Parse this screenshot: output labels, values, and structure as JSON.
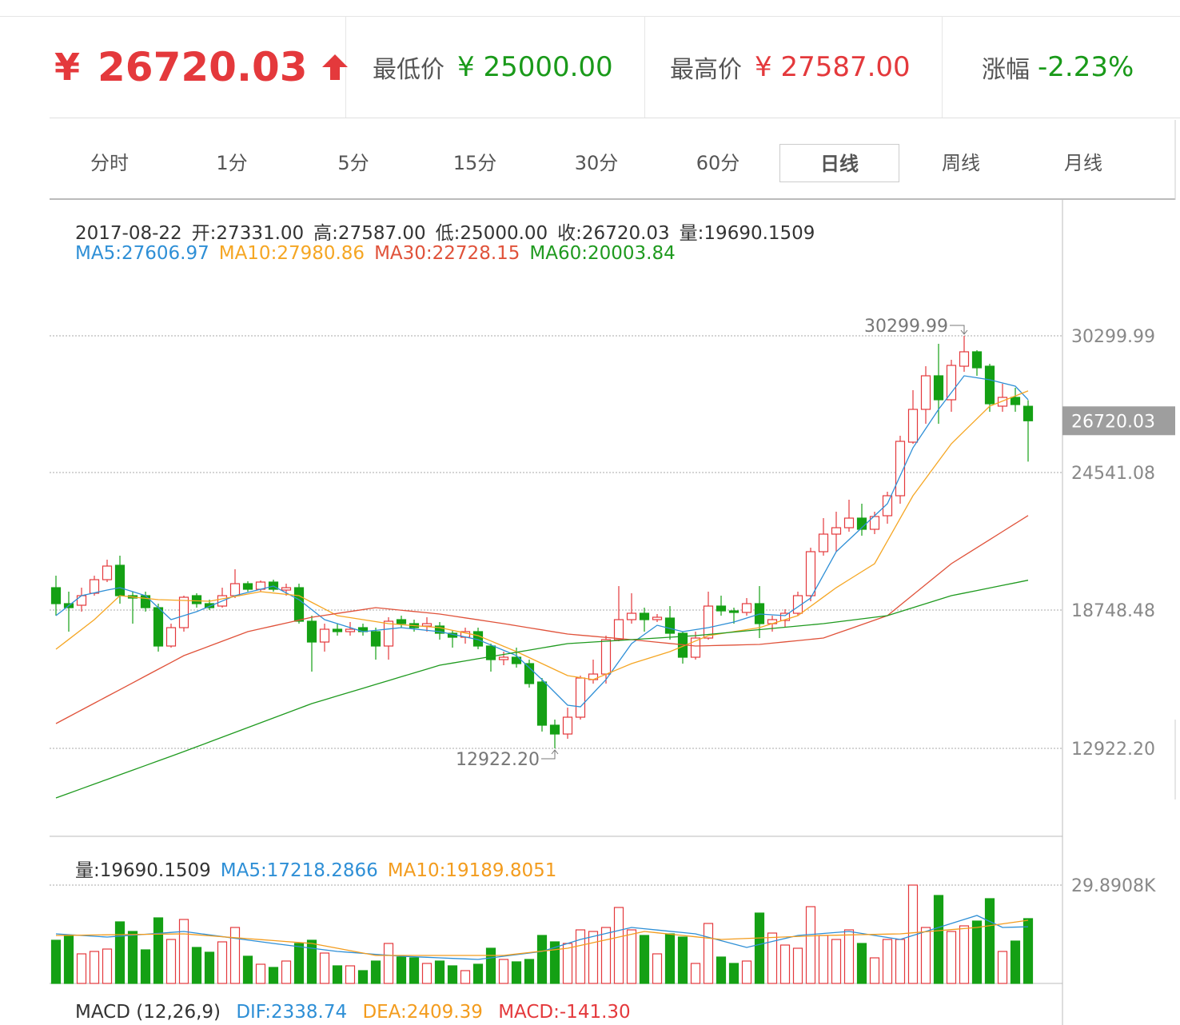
{
  "header": {
    "price": {
      "symbol": "¥",
      "value": "26720.03"
    },
    "low": {
      "label": "最低价",
      "value": "¥ 25000.00"
    },
    "high": {
      "label": "最高价",
      "value": "¥ 27587.00"
    },
    "change": {
      "label": "涨幅",
      "value": "-2.23%"
    }
  },
  "tabs": {
    "items": [
      "分时",
      "1分",
      "5分",
      "15分",
      "30分",
      "60分",
      "日线",
      "周线",
      "月线"
    ],
    "active": "日线"
  },
  "chart_data": {
    "type": "candlestick",
    "info": [
      "2017-08-22",
      "开:27331.00",
      "高:27587.00",
      "低:25000.00",
      "收:26720.03",
      "量:19690.1509"
    ],
    "up_color": "#e4393c",
    "down_color": "#14a014",
    "ylim": [
      9250,
      36025
    ],
    "yticks": [
      30299.99,
      24541.08,
      18748.48,
      {
        "value": 12922.2,
        "label": "12922.20"
      }
    ],
    "grid": true,
    "price_tag": {
      "value": 26720.03,
      "label": "26720.03"
    },
    "annotations": [
      "30299.99",
      "12922.20"
    ],
    "ohlc": [
      [
        19690,
        20195,
        18511,
        19017
      ],
      [
        19017,
        19522,
        17838,
        18848
      ],
      [
        18950,
        19690,
        18680,
        19353
      ],
      [
        19455,
        20195,
        19353,
        20027
      ],
      [
        20027,
        20869,
        19926,
        20600
      ],
      [
        20633,
        21038,
        19017,
        19353
      ],
      [
        19353,
        19522,
        18175,
        19252
      ],
      [
        19353,
        19522,
        18680,
        18848
      ],
      [
        18848,
        19017,
        16996,
        17232
      ],
      [
        17232,
        18175,
        17164,
        18006
      ],
      [
        18006,
        19353,
        17838,
        19286
      ],
      [
        19353,
        19455,
        18848,
        19017
      ],
      [
        19017,
        19185,
        18747,
        18848
      ],
      [
        18915,
        19690,
        18848,
        19353
      ],
      [
        19353,
        20465,
        19252,
        19859
      ],
      [
        19859,
        19960,
        19522,
        19623
      ],
      [
        19623,
        19993,
        19522,
        19926
      ],
      [
        19926,
        20027,
        19522,
        19623
      ],
      [
        19589,
        19859,
        19353,
        19690
      ],
      [
        19690,
        19859,
        18175,
        18276
      ],
      [
        18276,
        18511,
        16154,
        17400
      ],
      [
        17400,
        18175,
        16996,
        17939
      ],
      [
        17939,
        18175,
        17669,
        17838
      ],
      [
        17838,
        18242,
        17669,
        17939
      ],
      [
        18006,
        18175,
        17669,
        17838
      ],
      [
        17838,
        18006,
        16659,
        17232
      ],
      [
        17232,
        18444,
        16659,
        18276
      ],
      [
        18343,
        18511,
        18006,
        18175
      ],
      [
        18175,
        18343,
        17838,
        18006
      ],
      [
        18074,
        18444,
        17838,
        18175
      ],
      [
        18074,
        18242,
        17501,
        17770
      ],
      [
        17770,
        17905,
        17164,
        17602
      ],
      [
        17602,
        18006,
        17333,
        17838
      ],
      [
        17838,
        18006,
        17097,
        17232
      ],
      [
        17232,
        17333,
        16154,
        16659
      ],
      [
        16659,
        16996,
        16423,
        16760
      ],
      [
        16760,
        17164,
        16322,
        16491
      ],
      [
        16491,
        16659,
        15480,
        15649
      ],
      [
        15716,
        15884,
        13628,
        13897
      ],
      [
        13897,
        14133,
        12922.2,
        13526
      ],
      [
        13526,
        14638,
        13325,
        14234
      ],
      [
        14234,
        15985,
        14133,
        15884
      ],
      [
        15817,
        16659,
        15649,
        16052
      ],
      [
        16052,
        17669,
        15649,
        17501
      ],
      [
        17501,
        19757,
        17434,
        18343
      ],
      [
        18343,
        19455,
        18175,
        18612
      ],
      [
        18612,
        18848,
        17838,
        18343
      ],
      [
        18343,
        18579,
        18242,
        18444
      ],
      [
        18410,
        18915,
        17501,
        17770
      ],
      [
        17770,
        17838,
        16491,
        16760
      ],
      [
        16760,
        17838,
        16659,
        17568
      ],
      [
        17568,
        19522,
        17501,
        18915
      ],
      [
        18915,
        19353,
        18511,
        18713
      ],
      [
        18713,
        18848,
        18175,
        18646
      ],
      [
        18646,
        19252,
        18511,
        19017
      ],
      [
        19017,
        19757,
        17568,
        18175
      ],
      [
        18175,
        18511,
        17838,
        18343
      ],
      [
        18309,
        18781,
        18006,
        18612
      ],
      [
        18612,
        19522,
        18511,
        19353
      ],
      [
        19353,
        21374,
        19118,
        21206
      ],
      [
        21206,
        22620,
        21038,
        21946
      ],
      [
        21946,
        22890,
        21206,
        22216
      ],
      [
        22216,
        23395,
        22048,
        22620
      ],
      [
        22620,
        23227,
        21879,
        22149
      ],
      [
        22149,
        22890,
        21946,
        22688
      ],
      [
        22721,
        23732,
        22385,
        23563
      ],
      [
        23563,
        26089,
        23227,
        25854
      ],
      [
        25820,
        28009,
        25753,
        27201
      ],
      [
        27201,
        29019,
        26595,
        28615
      ],
      [
        28615,
        29963,
        26595,
        27605
      ],
      [
        27605,
        29289,
        27100,
        29053
      ],
      [
        29019,
        30299.99,
        28784,
        29626
      ],
      [
        29626,
        29693,
        28615,
        28952
      ],
      [
        29019,
        29121,
        27100,
        27437
      ],
      [
        27336,
        28279,
        27100,
        27706
      ],
      [
        27706,
        28110,
        27100,
        27403
      ],
      [
        27331,
        27587,
        25000,
        26720.03
      ]
    ],
    "ma_lines": [
      {
        "name": "MA5",
        "legend_label": "MA5:27606.97",
        "color": "#2e8fd6",
        "values": [
          18511,
          18932,
          19353,
          19471,
          19589,
          19690,
          19522,
          19353,
          18848,
          18343,
          18512,
          18680,
          18904,
          19129,
          19353,
          19488,
          19622,
          19757,
          19471,
          19185,
          18764,
          18343,
          18175,
          18006,
          17838,
          17894,
          17950,
          18006,
          17950,
          17894,
          17838,
          17726,
          17613,
          17501,
          17276,
          17052,
          16827,
          16322,
          15817,
          15278,
          14739,
          14672,
          15245,
          15817,
          16575,
          17333,
          17720,
          18107,
          17973,
          17838,
          17922,
          18006,
          18124,
          18242,
          18411,
          18579,
          18545,
          18511,
          18882,
          19252,
          20229,
          21206,
          21711,
          22216,
          22722,
          23227,
          24406,
          25584,
          26393,
          27201,
          27908,
          28615,
          28531,
          28447,
          28313,
          28178,
          27606.97
        ]
      },
      {
        "name": "MA10",
        "legend_label": "MA10:27980.86",
        "color": "#f5a623",
        "values": [
          17097,
          17512,
          17928,
          18343,
          18848,
          19353,
          19297,
          19241,
          19185,
          19168,
          19151,
          19135,
          19118,
          19219,
          19320,
          19421,
          19522,
          19466,
          19409,
          19353,
          19072,
          18792,
          18511,
          18427,
          18343,
          18259,
          18175,
          18133,
          18091,
          18048,
          18006,
          17894,
          17781,
          17669,
          17445,
          17220,
          16996,
          16743,
          16491,
          16238,
          15985,
          15901,
          15817,
          16042,
          16266,
          16491,
          16659,
          16828,
          16996,
          17220,
          17445,
          17669,
          17753,
          17838,
          17922,
          18006,
          18175,
          18343,
          18511,
          18904,
          19297,
          19690,
          20027,
          20364,
          20701,
          21655,
          22609,
          23563,
          24293,
          25023,
          25753,
          26281,
          26808,
          27336,
          27551,
          27766,
          27980.86
        ]
      },
      {
        "name": "MA30",
        "legend_label": "MA30:22728.15",
        "color": "#e0523a",
        "values": [
          13965,
          14251,
          14538,
          14824,
          15110,
          15396,
          15682,
          15969,
          16255,
          16541,
          16827,
          17029,
          17231,
          17434,
          17636,
          17838,
          17959,
          18080,
          18202,
          18323,
          18444,
          18525,
          18606,
          18686,
          18767,
          18848,
          18794,
          18740,
          18687,
          18633,
          18579,
          18498,
          18417,
          18337,
          18256,
          18175,
          18087,
          17999,
          17912,
          17824,
          17736,
          17689,
          17642,
          17595,
          17548,
          17501,
          17447,
          17393,
          17340,
          17286,
          17232,
          17245,
          17259,
          17272,
          17286,
          17299,
          17353,
          17407,
          17460,
          17514,
          17568,
          17757,
          17945,
          18134,
          18322,
          18511,
          18949,
          19387,
          19825,
          20263,
          20701,
          21039,
          21376,
          21714,
          22052,
          22390,
          22728.15
        ]
      },
      {
        "name": "MA60",
        "legend_label": "MA60:20003.84",
        "color": "#1f9a1f",
        "values": [
          10832,
          11027,
          11222,
          11418,
          11613,
          11809,
          12004,
          12199,
          12395,
          12590,
          12786,
          12988,
          13190,
          13392,
          13594,
          13796,
          13998,
          14201,
          14403,
          14605,
          14807,
          14969,
          15130,
          15292,
          15453,
          15615,
          15777,
          15938,
          16100,
          16261,
          16423,
          16514,
          16605,
          16696,
          16787,
          16878,
          16969,
          17060,
          17151,
          17242,
          17333,
          17367,
          17400,
          17434,
          17467,
          17501,
          17535,
          17568,
          17602,
          17635,
          17669,
          17720,
          17770,
          17821,
          17872,
          17922,
          17973,
          18023,
          18074,
          18124,
          18175,
          18242,
          18309,
          18377,
          18444,
          18511,
          18679,
          18848,
          19016,
          19185,
          19353,
          19461,
          19570,
          19678,
          19787,
          19895,
          20003.84
        ]
      }
    ],
    "volume": {
      "label": "量:19690.1509",
      "ylim": [
        0,
        44714
      ],
      "yticks": [
        {
          "value": 29890.8,
          "label": "29.8908K"
        }
      ],
      "values": [
        13122,
        14580,
        8991,
        9720,
        10449,
        18711,
        15795,
        10206,
        19926,
        13365,
        19440,
        10935,
        9477,
        12636,
        17010,
        8262,
        5832,
        4860,
        6804,
        12150,
        13122,
        9234,
        5346,
        5346,
        3888,
        6804,
        12150,
        8019,
        7776,
        6075,
        6804,
        5346,
        3888,
        5832,
        10692,
        7290,
        6561,
        7290,
        14580,
        12636,
        12150,
        16281,
        15795,
        17010,
        23085,
        16281,
        14580,
        8991,
        15066,
        14094,
        6075,
        18225,
        8019,
        6075,
        6804,
        21384,
        15309,
        11664,
        10692,
        23328,
        14580,
        13365,
        16281,
        12150,
        7776,
        13365,
        13365,
        29890.8,
        17010,
        26730,
        15795,
        17496,
        18954,
        25758,
        9720,
        12879,
        19690.1509
      ],
      "ma_lines": [
        {
          "name": "MA5",
          "legend_label": "MA5:17218.2866",
          "color": "#2e8fd6",
          "values": [
            15066,
            14823,
            14580,
            14337,
            14094,
            14378,
            14661,
            14945,
            15228,
            15512,
            15795,
            15274,
            14754,
            14233,
            13712,
            13192,
            12671,
            12150,
            11664,
            11178,
            10692,
            10206,
            9720,
            9428,
            9137,
            8845,
            8554,
            8262,
            8100,
            7938,
            7776,
            7614,
            7452,
            7290,
            7776,
            8262,
            8748,
            9234,
            9720,
            10935,
            12150,
            13365,
            14276,
            15188,
            16099,
            17010,
            16621,
            16232,
            15844,
            15455,
            15066,
            14033,
            13001,
            11968,
            10935,
            11846,
            12758,
            13669,
            14580,
            14884,
            15188,
            15491,
            15795,
            15188,
            14580,
            13973,
            13365,
            14580,
            15795,
            17010,
            18225,
            19440,
            20655,
            18833,
            17010,
            17114,
            17218.2866
          ]
        },
        {
          "name": "MA10",
          "legend_label": "MA10:19189.8051",
          "color": "#f39c1e",
          "values": [
            14580,
            14629,
            14677,
            14726,
            14774,
            14823,
            14872,
            14920,
            14969,
            15017,
            15066,
            14774,
            14483,
            14191,
            13900,
            13608,
            13316,
            13025,
            12733,
            12442,
            12150,
            11421,
            10692,
            9963,
            9234,
            8505,
            8505,
            8505,
            8505,
            8505,
            8505,
            8505,
            8505,
            8505,
            8505,
            8505,
            8942,
            9380,
            9817,
            10255,
            10692,
            11543,
            12393,
            13244,
            14094,
            14945,
            15795,
            15390,
            14985,
            14580,
            14175,
            13770,
            13365,
            13517,
            13669,
            13821,
            13973,
            14125,
            14277,
            14428,
            14580,
            14661,
            14742,
            14823,
            14904,
            14985,
            15066,
            15390,
            15714,
            16038,
            16362,
            16686,
            17010,
            17555,
            18100,
            18645,
            19189.8051
          ]
        }
      ]
    },
    "macd": {
      "label": "MACD  (12,26,9)",
      "dif": "DIF:2338.74",
      "dea": "DEA:2409.39",
      "macd": "MACD:-141.30"
    }
  }
}
